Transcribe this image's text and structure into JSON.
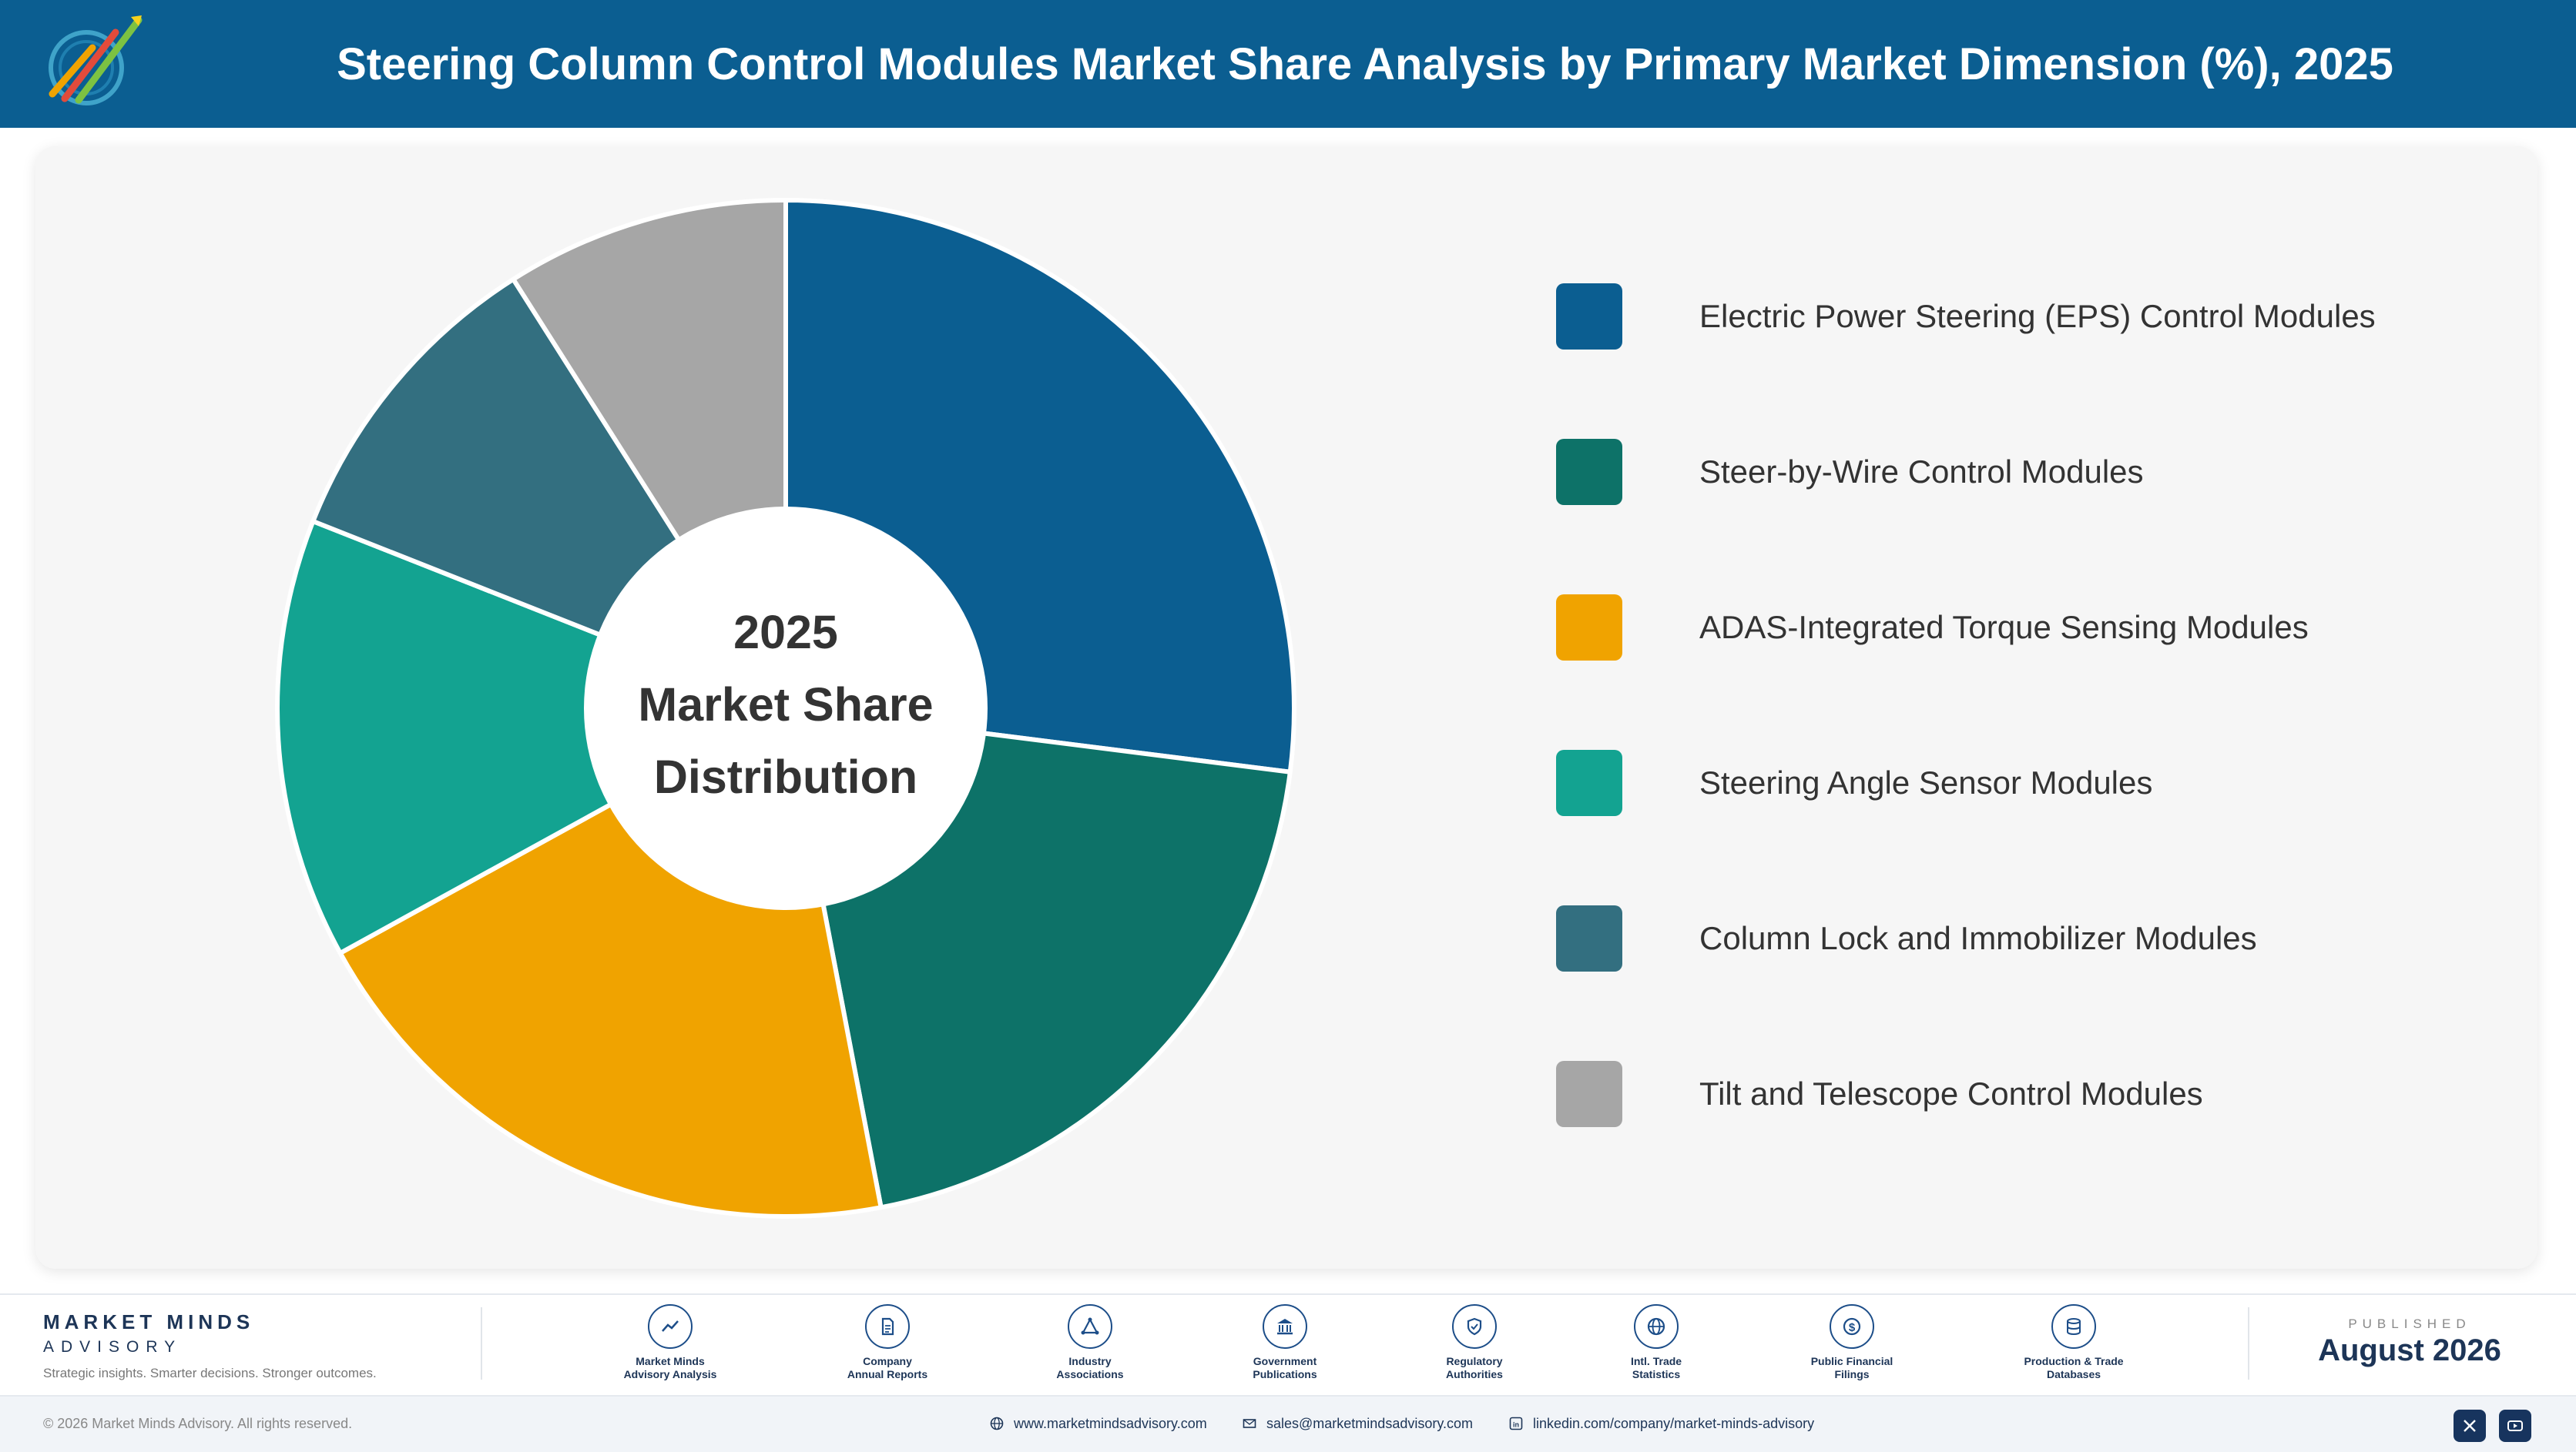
{
  "header": {
    "title": "Steering Column Control Modules Market Share Analysis by Primary Market Dimension (%), 2025"
  },
  "chart_data": {
    "type": "pie",
    "title": "Steering Column Control Modules Market Share Analysis by Primary Market Dimension (%), 2025",
    "center_label": [
      "2025",
      "Market Share",
      "Distribution"
    ],
    "categories": [
      "Electric Power Steering (EPS) Control Modules",
      "Steer-by-Wire Control Modules",
      "ADAS-Integrated Torque Sensing Modules",
      "Steering Angle Sensor Modules",
      "Column Lock and Immobilizer Modules",
      "Tilt and Telescope Control Modules"
    ],
    "values": [
      27,
      20,
      20,
      14,
      10,
      9
    ],
    "colors": [
      "#0b5e91",
      "#0d7268",
      "#f0a300",
      "#13a391",
      "#336f80",
      "#a6a6a6"
    ],
    "legend_position": "right",
    "donut": true
  },
  "footer": {
    "brand_name": "MARKET MINDS",
    "brand_sub": "ADVISORY",
    "tagline": "Strategic insights. Smarter decisions. Stronger outcomes.",
    "sources": [
      {
        "line1": "Market Minds",
        "line2": "Advisory Analysis",
        "icon": "chart-line-icon"
      },
      {
        "line1": "Company",
        "line2": "Annual Reports",
        "icon": "document-icon"
      },
      {
        "line1": "Industry",
        "line2": "Associations",
        "icon": "network-icon"
      },
      {
        "line1": "Government",
        "line2": "Publications",
        "icon": "government-building-icon"
      },
      {
        "line1": "Regulatory",
        "line2": "Authorities",
        "icon": "shield-check-icon"
      },
      {
        "line1": "Intl. Trade",
        "line2": "Statistics",
        "icon": "globe-icon"
      },
      {
        "line1": "Public Financial",
        "line2": "Filings",
        "icon": "dollar-coin-icon"
      },
      {
        "line1": "Production & Trade",
        "line2": "Databases",
        "icon": "database-icon"
      }
    ],
    "published_label": "PUBLISHED",
    "published_date": "August 2026",
    "copyright": "© 2026 Market Minds Advisory. All rights reserved.",
    "website": "www.marketmindsadvisory.com",
    "email": "sales@marketmindsadvisory.com",
    "linkedin": "linkedin.com/company/market-minds-advisory"
  }
}
